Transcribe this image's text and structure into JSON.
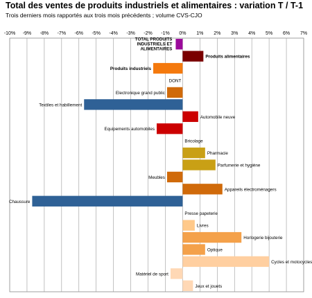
{
  "chart_data": {
    "type": "bar",
    "orientation": "horizontal",
    "title": "Total des ventes de produits industriels et alimentaires : variation T / T-1",
    "subtitle": "Trois derniers mois rapportés aux trois mois précédents ; volume CVS-CJO",
    "xlim": [
      -10,
      7
    ],
    "x_ticks": [
      "-10%",
      "-9%",
      "-8%",
      "-7%",
      "-6%",
      "-5%",
      "-4%",
      "-3%",
      "-2%",
      "-1%",
      "0%",
      "1%",
      "2%",
      "3%",
      "4%",
      "5%",
      "6%",
      "7%"
    ],
    "grid": true,
    "items": [
      {
        "label": "TOTAL PRODUITS INDUSTRIELS ET ALIMENTAIRES",
        "value": -0.4,
        "color": "#9b0a9b",
        "bold": true
      },
      {
        "label": "Produits alimentaires",
        "value": 1.2,
        "color": "#7a0000",
        "bold": true
      },
      {
        "label": "Produits industriels",
        "value": -1.7,
        "color": "#f4790d",
        "bold": true
      },
      {
        "label": "DONT",
        "value": null,
        "color": "",
        "bold": false
      },
      {
        "label": "Electronique grand public",
        "value": -0.9,
        "color": "#d06a0a",
        "bold": false
      },
      {
        "label": "Textiles et habillement",
        "value": -5.7,
        "color": "#2f6196",
        "bold": false
      },
      {
        "label": "Automobile neuve",
        "value": 0.9,
        "color": "#cc0000",
        "bold": false
      },
      {
        "label": "Equipements automobiles",
        "value": -1.5,
        "color": "#cc0000",
        "bold": false
      },
      {
        "label": "Bricolage",
        "value": 0.0,
        "color": "#c9a015",
        "bold": false
      },
      {
        "label": "Pharmacie",
        "value": 1.3,
        "color": "#c9a015",
        "bold": false
      },
      {
        "label": "Parfumerie et hygiène",
        "value": 1.9,
        "color": "#c9a015",
        "bold": false
      },
      {
        "label": "Meubles",
        "value": -0.9,
        "color": "#d06a0a",
        "bold": false
      },
      {
        "label": "Appareils électroménagers",
        "value": 2.3,
        "color": "#d06a0a",
        "bold": false
      },
      {
        "label": "Chaussure",
        "value": -8.7,
        "color": "#2f6196",
        "bold": false
      },
      {
        "label": "Presse papeterie",
        "value": 0.0,
        "color": "#f2a96a",
        "bold": false
      },
      {
        "label": "Livres",
        "value": 0.7,
        "color": "#ffc98a",
        "bold": false
      },
      {
        "label": "Horlogerie bijouterie",
        "value": 3.4,
        "color": "#f4a14a",
        "bold": false
      },
      {
        "label": "Optique",
        "value": 1.3,
        "color": "#f4a14a",
        "bold": false
      },
      {
        "label": "Cycles et motocycles",
        "value": 5.0,
        "color": "#ffcfa0",
        "bold": false
      },
      {
        "label": "Matériel de sport",
        "value": -0.7,
        "color": "#ffd8b5",
        "bold": false
      },
      {
        "label": "Jeux et jouets",
        "value": 0.6,
        "color": "#ffd8b5",
        "bold": false
      }
    ]
  }
}
